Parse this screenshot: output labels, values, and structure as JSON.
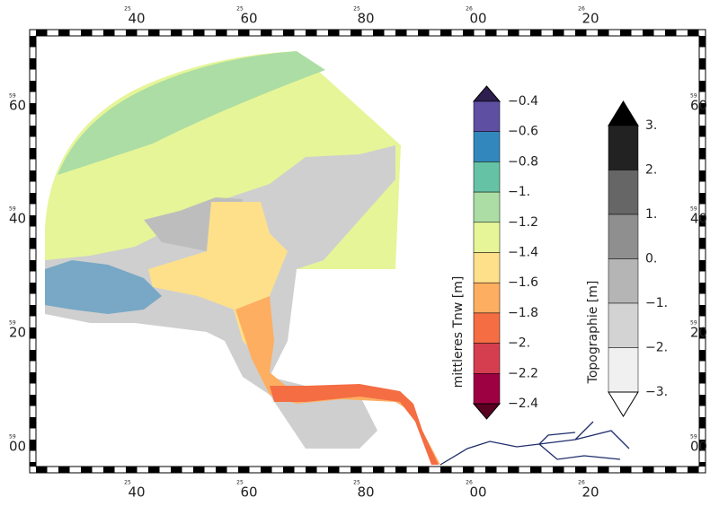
{
  "frame": {
    "top": [
      {
        "deg": "25",
        "min": "40"
      },
      {
        "deg": "25",
        "min": "60"
      },
      {
        "deg": "25",
        "min": "80"
      },
      {
        "deg": "26",
        "min": "00"
      },
      {
        "deg": "26",
        "min": "20"
      }
    ],
    "left": [
      {
        "deg": "59",
        "min": "60"
      },
      {
        "deg": "59",
        "min": "40"
      },
      {
        "deg": "59",
        "min": "20"
      },
      {
        "deg": "59",
        "min": "00"
      }
    ]
  },
  "colorbar_tnw": {
    "title": "mittleres Tnw [m]",
    "labels": [
      "−0.4",
      "−0.6",
      "−0.8",
      "−1.",
      "−1.2",
      "−1.4",
      "−1.6",
      "−1.8",
      "−2.",
      "−2.2",
      "−2.4"
    ],
    "colors": [
      "#2d1e4f",
      "#5e4fa2",
      "#3288bd",
      "#66c2a5",
      "#abdda4",
      "#e6f598",
      "#fee08b",
      "#fdae61",
      "#f46d43",
      "#d53e4f",
      "#9e0142",
      "#5a0020"
    ]
  },
  "colorbar_topo": {
    "title": "Topographie [m]",
    "labels": [
      "3.",
      "2.",
      "1.",
      "0.",
      "−1.",
      "−2.",
      "−3."
    ],
    "colors": [
      "#000000",
      "#222222",
      "#666666",
      "#8f8f8f",
      "#b5b5b5",
      "#d3d3d3",
      "#f0f0f0",
      "#ffffff"
    ]
  }
}
